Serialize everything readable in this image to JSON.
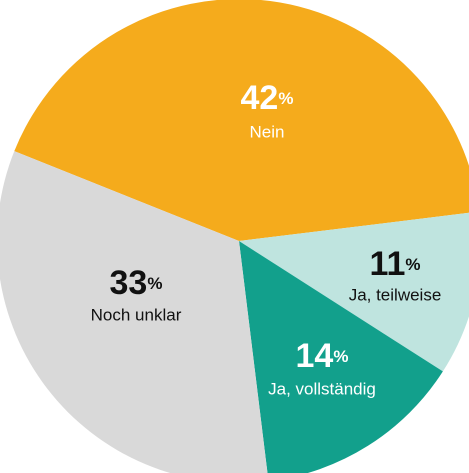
{
  "chart_data": {
    "type": "pie",
    "categories": [
      "Nein",
      "Ja, teilweise",
      "Ja, vollständig",
      "Noch unklar"
    ],
    "values": [
      42,
      11,
      14,
      33
    ],
    "unit": "%",
    "colors": [
      "#f5ab1c",
      "#bfe4df",
      "#12a08c",
      "#d9d9d9"
    ]
  }
}
